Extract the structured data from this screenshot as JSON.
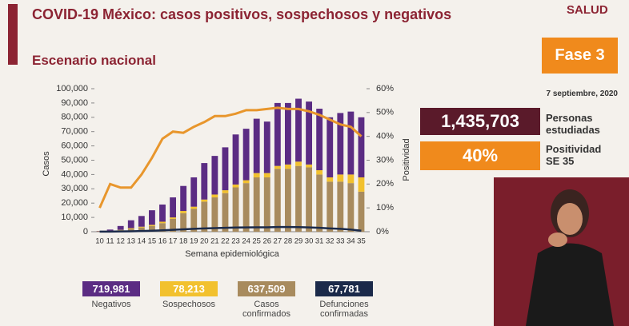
{
  "header": {
    "title": "COVID-19 México: casos positivos, sospechosos y negativos",
    "subtitle": "Escenario nacional",
    "logo": "SALUD"
  },
  "panel": {
    "phase": "Fase 3",
    "date": "7 septiembre, 2020",
    "studied_value": "1,435,703",
    "studied_label": "Personas estudiadas",
    "positivity_value": "40%",
    "positivity_label": "Positividad SE 35"
  },
  "chart_data": {
    "type": "bar",
    "stacked": true,
    "xlabel": "Semana epidemiológica",
    "ylabel": "Casos",
    "y2label": "Positividad",
    "categories": [
      "10",
      "11",
      "12",
      "13",
      "14",
      "15",
      "16",
      "17",
      "18",
      "19",
      "20",
      "21",
      "22",
      "23",
      "24",
      "25",
      "26",
      "27",
      "28",
      "29",
      "30",
      "31",
      "32",
      "33",
      "34",
      "35"
    ],
    "ylim": [
      0,
      100000
    ],
    "yticks": [
      0,
      {
        "value": 10000,
        "label": "10,000"
      },
      {
        "value": 20000,
        "label": "20,000"
      },
      {
        "value": 30000,
        "label": "30,000"
      },
      {
        "value": 40000,
        "label": "40,000"
      },
      {
        "value": 50000,
        "label": "50,000"
      },
      {
        "value": 60000,
        "label": "60,000"
      },
      {
        "value": 70000,
        "label": "70,000"
      },
      {
        "value": 80000,
        "label": "80,000"
      },
      {
        "value": 90000,
        "label": "90,000"
      },
      {
        "value": 100000,
        "label": "100,000"
      }
    ],
    "y2lim": [
      0,
      60
    ],
    "y2ticks": [
      {
        "value": 0,
        "label": "0%"
      },
      {
        "value": 10,
        "label": "10%"
      },
      {
        "value": 20,
        "label": "20%"
      },
      {
        "value": 30,
        "label": "30%"
      },
      {
        "value": 40,
        "label": "40%"
      },
      {
        "value": 50,
        "label": "50%"
      },
      {
        "value": 60,
        "label": "60%"
      }
    ],
    "series": [
      {
        "name": "Casos confirmados",
        "color": "#a88b5e",
        "total": "637,509",
        "values": [
          200,
          500,
          1000,
          2000,
          3000,
          4000,
          6000,
          9000,
          13000,
          16000,
          21000,
          24000,
          27000,
          31000,
          34000,
          38000,
          38000,
          44000,
          44000,
          46000,
          45000,
          40000,
          35000,
          35000,
          34000,
          28000
        ]
      },
      {
        "name": "Sospechosos",
        "color": "#f2c12e",
        "total": "78,213",
        "values": [
          100,
          200,
          300,
          500,
          500,
          800,
          1000,
          1000,
          1500,
          1500,
          1500,
          2000,
          2000,
          2000,
          2000,
          3000,
          3000,
          2000,
          3000,
          3000,
          2000,
          3000,
          3000,
          5000,
          6000,
          10000
        ]
      },
      {
        "name": "Negativos",
        "color": "#5b2c83",
        "total": "719,981",
        "values": [
          200,
          800,
          2700,
          5500,
          7500,
          10200,
          12000,
          14000,
          17500,
          20500,
          25500,
          27000,
          30000,
          35000,
          36000,
          38000,
          36000,
          44000,
          43000,
          44000,
          44000,
          43000,
          42000,
          43000,
          44000,
          42000
        ]
      },
      {
        "name": "Defunciones confirmadas",
        "color": "#1b2a4a",
        "total": "67,781",
        "type": "line",
        "values": [
          50,
          100,
          200,
          300,
          500,
          700,
          1000,
          1300,
          1700,
          2000,
          2300,
          2500,
          2700,
          2900,
          3000,
          3100,
          3100,
          3300,
          3300,
          3200,
          3000,
          2700,
          2300,
          2000,
          1500,
          700
        ]
      },
      {
        "color": "#e8962c",
        "type": "line",
        "axis": "y2",
        "values": [
          10,
          20,
          18.5,
          18.5,
          24,
          31,
          39,
          42,
          41.5,
          44,
          46,
          48.5,
          48.5,
          49.5,
          51,
          51,
          51.5,
          52,
          51.5,
          51.5,
          50.5,
          49,
          47,
          45,
          44,
          40
        ]
      }
    ]
  }
}
